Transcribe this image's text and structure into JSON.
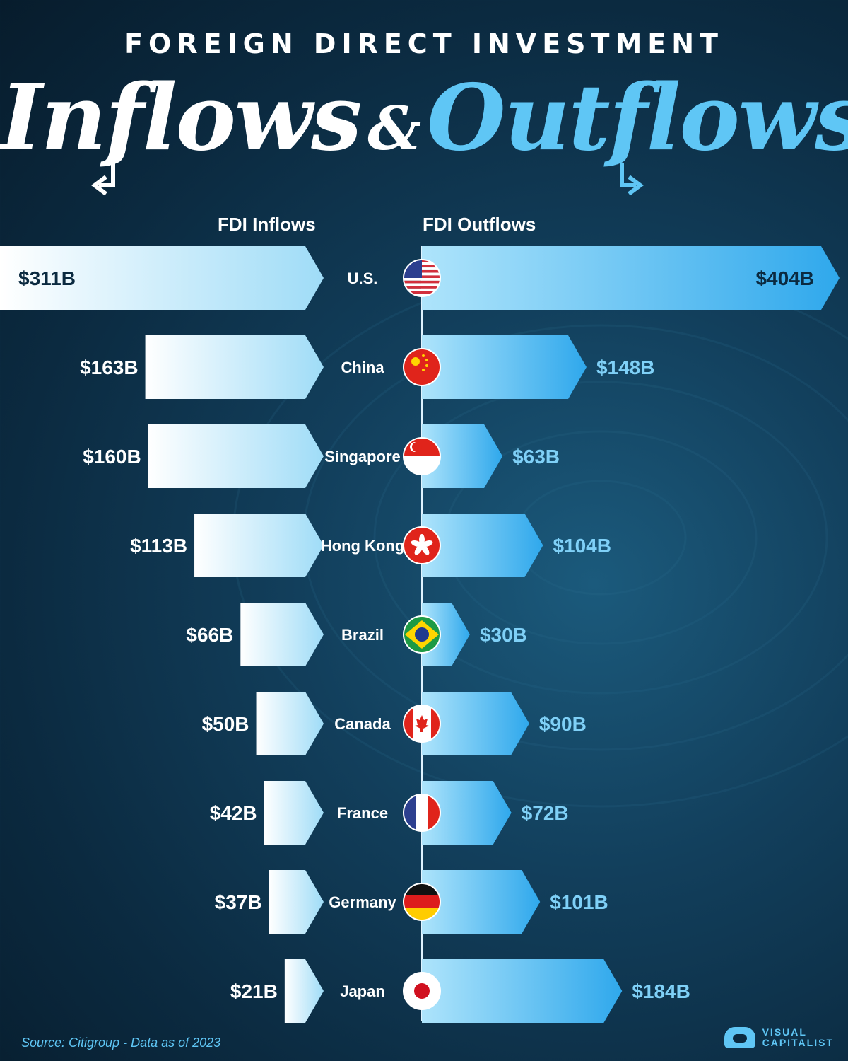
{
  "header": {
    "kicker": "FOREIGN DIRECT INVESTMENT",
    "title_part1": "Inflows",
    "title_amp": "&",
    "title_part2": "Outflows"
  },
  "columns": {
    "inflows_label": "FDI Inflows",
    "outflows_label": "FDI Outflows"
  },
  "chart_data": {
    "type": "bar",
    "categories": [
      "U.S.",
      "China",
      "Singapore",
      "Hong Kong",
      "Brazil",
      "Canada",
      "France",
      "Germany",
      "Japan"
    ],
    "series": [
      {
        "name": "FDI Inflows",
        "values": [
          311,
          163,
          160,
          113,
          66,
          50,
          42,
          37,
          21
        ]
      },
      {
        "name": "FDI Outflows",
        "values": [
          404,
          148,
          63,
          104,
          30,
          90,
          72,
          101,
          184
        ]
      }
    ],
    "value_labels_inflows": [
      "$311B",
      "$163B",
      "$160B",
      "$113B",
      "$66B",
      "$50B",
      "$42B",
      "$37B",
      "$21B"
    ],
    "value_labels_outflows": [
      "$404B",
      "$148B",
      "$63B",
      "$104B",
      "$30B",
      "$90B",
      "$72B",
      "$101B",
      "$184B"
    ],
    "flags": [
      "us-flag-icon",
      "china-flag-icon",
      "singapore-flag-icon",
      "hong-kong-flag-icon",
      "brazil-flag-icon",
      "canada-flag-icon",
      "france-flag-icon",
      "germany-flag-icon",
      "japan-flag-icon"
    ],
    "colors": {
      "inflow_light": "#eaf7ff",
      "inflow_dark": "#9fdcf7",
      "outflow_light": "#aee4fb",
      "outflow_dark": "#2fa8ec",
      "outflow_label": "#7fd0f7"
    }
  },
  "footer": {
    "source": "Source: Citigroup - Data as of 2023",
    "brand_line1": "VISUAL",
    "brand_line2": "CAPITALIST"
  }
}
